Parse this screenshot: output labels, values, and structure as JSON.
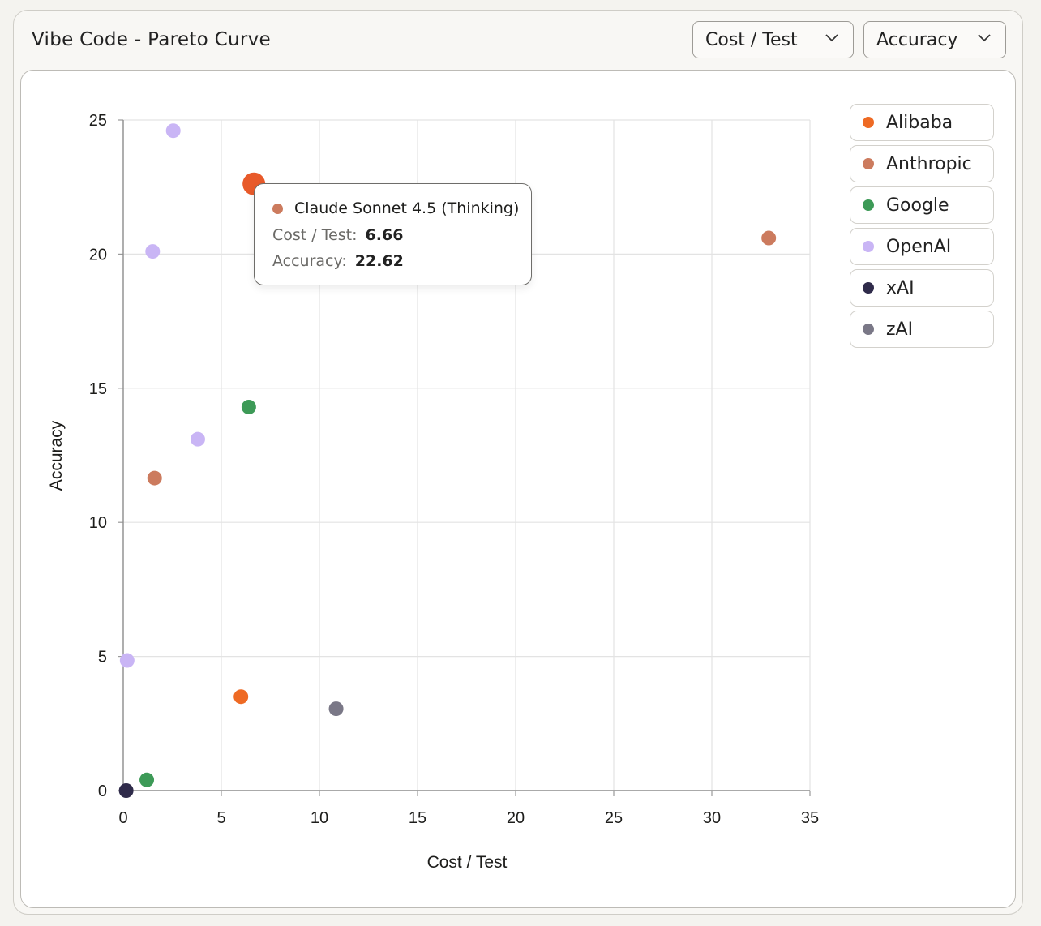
{
  "card": {
    "title": "Vibe Code - Pareto Curve"
  },
  "controls": {
    "x_select": {
      "label": "Cost / Test",
      "icon": "chevron-down-icon"
    },
    "y_select": {
      "label": "Accuracy",
      "icon": "chevron-down-icon"
    }
  },
  "chart_data": {
    "type": "scatter",
    "xlabel": "Cost / Test",
    "ylabel": "Accuracy",
    "xlim": [
      0,
      35
    ],
    "ylim": [
      0,
      25
    ],
    "xticks": [
      "0",
      "5",
      "10",
      "15",
      "20",
      "25",
      "30",
      "35"
    ],
    "yticks": [
      "0",
      "5",
      "10",
      "15",
      "20",
      "25"
    ],
    "grid": true,
    "legend_position": "top-right",
    "series": [
      {
        "name": "Alibaba",
        "color": "#ee6a24",
        "points": [
          {
            "x": 6.0,
            "y": 3.5
          }
        ]
      },
      {
        "name": "Anthropic",
        "color": "#cc7b5e",
        "points": [
          {
            "x": 6.66,
            "y": 22.62
          },
          {
            "x": 32.9,
            "y": 20.6
          },
          {
            "x": 1.6,
            "y": 11.65
          }
        ]
      },
      {
        "name": "Google",
        "color": "#3d9a57",
        "points": [
          {
            "x": 6.4,
            "y": 14.3
          },
          {
            "x": 1.2,
            "y": 0.4
          }
        ]
      },
      {
        "name": "OpenAI",
        "color": "#c9b5f5",
        "points": [
          {
            "x": 2.55,
            "y": 24.6
          },
          {
            "x": 1.5,
            "y": 20.1
          },
          {
            "x": 3.8,
            "y": 13.1
          },
          {
            "x": 0.2,
            "y": 4.85
          }
        ]
      },
      {
        "name": "xAI",
        "color": "#2f2b4a",
        "points": [
          {
            "x": 0.15,
            "y": 0.0
          }
        ]
      },
      {
        "name": "zAI",
        "color": "#7a7887",
        "points": [
          {
            "x": 10.85,
            "y": 3.05
          }
        ]
      }
    ],
    "highlighted_point": {
      "series": "Anthropic",
      "x": 6.66,
      "y": 22.62,
      "color": "#e85a2a"
    }
  },
  "tooltip": {
    "model": "Claude Sonnet 4.5 (Thinking)",
    "color": "#cc7b5e",
    "x_key": "Cost / Test:",
    "x_value": "6.66",
    "y_key": "Accuracy:",
    "y_value": "22.62"
  }
}
